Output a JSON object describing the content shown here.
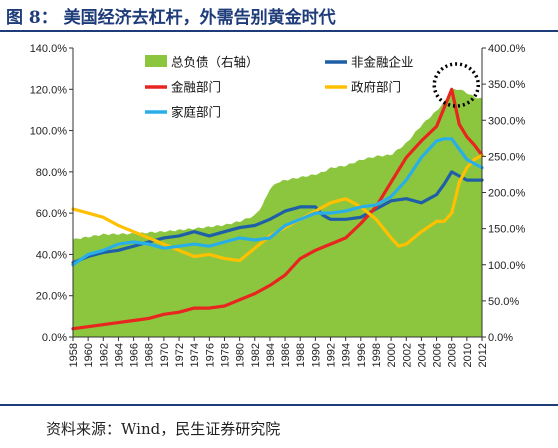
{
  "figure": {
    "title": "图 8：  美国经济去杠杆，外需告别黄金时代",
    "source": "资料来源：Wind，民生证券研究院"
  },
  "chart_data": {
    "type": "line",
    "x_categories": [
      "1958",
      "1960",
      "1962",
      "1964",
      "1966",
      "1968",
      "1970",
      "1972",
      "1974",
      "1976",
      "1978",
      "1980",
      "1982",
      "1984",
      "1986",
      "1988",
      "1990",
      "1992",
      "1994",
      "1996",
      "1998",
      "2000",
      "2002",
      "2004",
      "2006",
      "2008",
      "2010",
      "2012"
    ],
    "y_left": {
      "ticks": [
        "0.0%",
        "20.0%",
        "40.0%",
        "60.0%",
        "80.0%",
        "100.0%",
        "120.0%",
        "140.0%"
      ],
      "range": [
        0,
        140
      ]
    },
    "y_right": {
      "ticks": [
        "0.0%",
        "50.0%",
        "100.0%",
        "150.0%",
        "200.0%",
        "250.0%",
        "300.0%",
        "350.0%",
        "400.0%"
      ],
      "range": [
        0,
        400
      ]
    },
    "legend": [
      {
        "label": "总负债（右轴）",
        "color": "#8cc63f",
        "kind": "area"
      },
      {
        "label": "非金融企业",
        "color": "#1f5fa8",
        "kind": "line"
      },
      {
        "label": "金融部门",
        "color": "#e8251f",
        "kind": "line"
      },
      {
        "label": "政府部门",
        "color": "#ffc000",
        "kind": "line"
      },
      {
        "label": "家庭部门",
        "color": "#2aaee8",
        "kind": "line"
      }
    ],
    "series": [
      {
        "name": "总负债（右轴）",
        "axis": "right",
        "type": "area",
        "color": "#8cc63f",
        "points": [
          [
            1958,
            135
          ],
          [
            1962,
            142
          ],
          [
            1966,
            143
          ],
          [
            1970,
            146
          ],
          [
            1974,
            150
          ],
          [
            1978,
            155
          ],
          [
            1980,
            160
          ],
          [
            1982,
            168
          ],
          [
            1983,
            182
          ],
          [
            1984,
            205
          ],
          [
            1985,
            214
          ],
          [
            1986,
            217
          ],
          [
            1988,
            221
          ],
          [
            1990,
            225
          ],
          [
            1991,
            228
          ],
          [
            1992,
            234
          ],
          [
            1994,
            237
          ],
          [
            1996,
            245
          ],
          [
            1998,
            250
          ],
          [
            2000,
            252
          ],
          [
            2002,
            268
          ],
          [
            2004,
            293
          ],
          [
            2006,
            313
          ],
          [
            2007,
            325
          ],
          [
            2008,
            342
          ],
          [
            2009,
            343
          ],
          [
            2010,
            338
          ],
          [
            2011,
            332
          ],
          [
            2012,
            330
          ]
        ]
      },
      {
        "name": "非金融企业",
        "axis": "left",
        "type": "line",
        "color": "#1f5fa8",
        "points": [
          [
            1958,
            36
          ],
          [
            1960,
            39
          ],
          [
            1962,
            41
          ],
          [
            1964,
            42
          ],
          [
            1966,
            44
          ],
          [
            1968,
            46
          ],
          [
            1970,
            48
          ],
          [
            1972,
            49
          ],
          [
            1974,
            51
          ],
          [
            1976,
            49
          ],
          [
            1978,
            51
          ],
          [
            1980,
            53
          ],
          [
            1982,
            54
          ],
          [
            1984,
            57
          ],
          [
            1986,
            61
          ],
          [
            1988,
            63
          ],
          [
            1990,
            63
          ],
          [
            1991,
            59
          ],
          [
            1992,
            57
          ],
          [
            1994,
            57
          ],
          [
            1996,
            58
          ],
          [
            1998,
            62
          ],
          [
            2000,
            66
          ],
          [
            2002,
            67
          ],
          [
            2004,
            65
          ],
          [
            2006,
            69
          ],
          [
            2007,
            74
          ],
          [
            2008,
            80
          ],
          [
            2009,
            78
          ],
          [
            2010,
            76
          ],
          [
            2012,
            76
          ]
        ]
      },
      {
        "name": "金融部门",
        "axis": "left",
        "type": "line",
        "color": "#e8251f",
        "points": [
          [
            1958,
            4
          ],
          [
            1960,
            5
          ],
          [
            1964,
            7
          ],
          [
            1966,
            8
          ],
          [
            1968,
            9
          ],
          [
            1970,
            11
          ],
          [
            1972,
            12
          ],
          [
            1974,
            14
          ],
          [
            1976,
            14
          ],
          [
            1978,
            15
          ],
          [
            1980,
            18
          ],
          [
            1982,
            21
          ],
          [
            1984,
            25
          ],
          [
            1986,
            30
          ],
          [
            1988,
            38
          ],
          [
            1990,
            42
          ],
          [
            1992,
            45
          ],
          [
            1994,
            48
          ],
          [
            1996,
            55
          ],
          [
            1998,
            63
          ],
          [
            2000,
            75
          ],
          [
            2002,
            87
          ],
          [
            2004,
            95
          ],
          [
            2006,
            102
          ],
          [
            2008,
            120
          ],
          [
            2009,
            103
          ],
          [
            2010,
            97
          ],
          [
            2011,
            93
          ],
          [
            2012,
            88
          ]
        ]
      },
      {
        "name": "政府部门",
        "axis": "left",
        "type": "line",
        "color": "#ffc000",
        "points": [
          [
            1958,
            62
          ],
          [
            1960,
            60
          ],
          [
            1962,
            58
          ],
          [
            1964,
            54
          ],
          [
            1966,
            51
          ],
          [
            1968,
            48
          ],
          [
            1970,
            45
          ],
          [
            1972,
            42
          ],
          [
            1974,
            39
          ],
          [
            1976,
            40
          ],
          [
            1978,
            38
          ],
          [
            1980,
            37
          ],
          [
            1982,
            43
          ],
          [
            1984,
            49
          ],
          [
            1986,
            53
          ],
          [
            1988,
            57
          ],
          [
            1990,
            61
          ],
          [
            1992,
            65
          ],
          [
            1994,
            67
          ],
          [
            1996,
            63
          ],
          [
            1998,
            57
          ],
          [
            2000,
            48
          ],
          [
            2001,
            44
          ],
          [
            2002,
            45
          ],
          [
            2004,
            51
          ],
          [
            2006,
            56
          ],
          [
            2007,
            56
          ],
          [
            2008,
            60
          ],
          [
            2009,
            75
          ],
          [
            2010,
            82
          ],
          [
            2011,
            86
          ],
          [
            2012,
            88
          ]
        ]
      },
      {
        "name": "家庭部门",
        "axis": "left",
        "type": "line",
        "color": "#2aaee8",
        "points": [
          [
            1958,
            35
          ],
          [
            1960,
            40
          ],
          [
            1962,
            42
          ],
          [
            1964,
            45
          ],
          [
            1966,
            46
          ],
          [
            1968,
            45
          ],
          [
            1970,
            43
          ],
          [
            1972,
            44
          ],
          [
            1974,
            45
          ],
          [
            1976,
            44
          ],
          [
            1978,
            46
          ],
          [
            1980,
            48
          ],
          [
            1982,
            47
          ],
          [
            1984,
            48
          ],
          [
            1986,
            54
          ],
          [
            1988,
            57
          ],
          [
            1990,
            60
          ],
          [
            1992,
            60
          ],
          [
            1994,
            61
          ],
          [
            1996,
            63
          ],
          [
            1998,
            64
          ],
          [
            2000,
            68
          ],
          [
            2002,
            76
          ],
          [
            2004,
            87
          ],
          [
            2006,
            95
          ],
          [
            2007,
            96
          ],
          [
            2008,
            96
          ],
          [
            2009,
            91
          ],
          [
            2010,
            86
          ],
          [
            2011,
            84
          ],
          [
            2012,
            82
          ]
        ]
      }
    ],
    "annotation": "dotted circle around 2008 peak",
    "grid": false,
    "legend_placement": "top-inside"
  }
}
